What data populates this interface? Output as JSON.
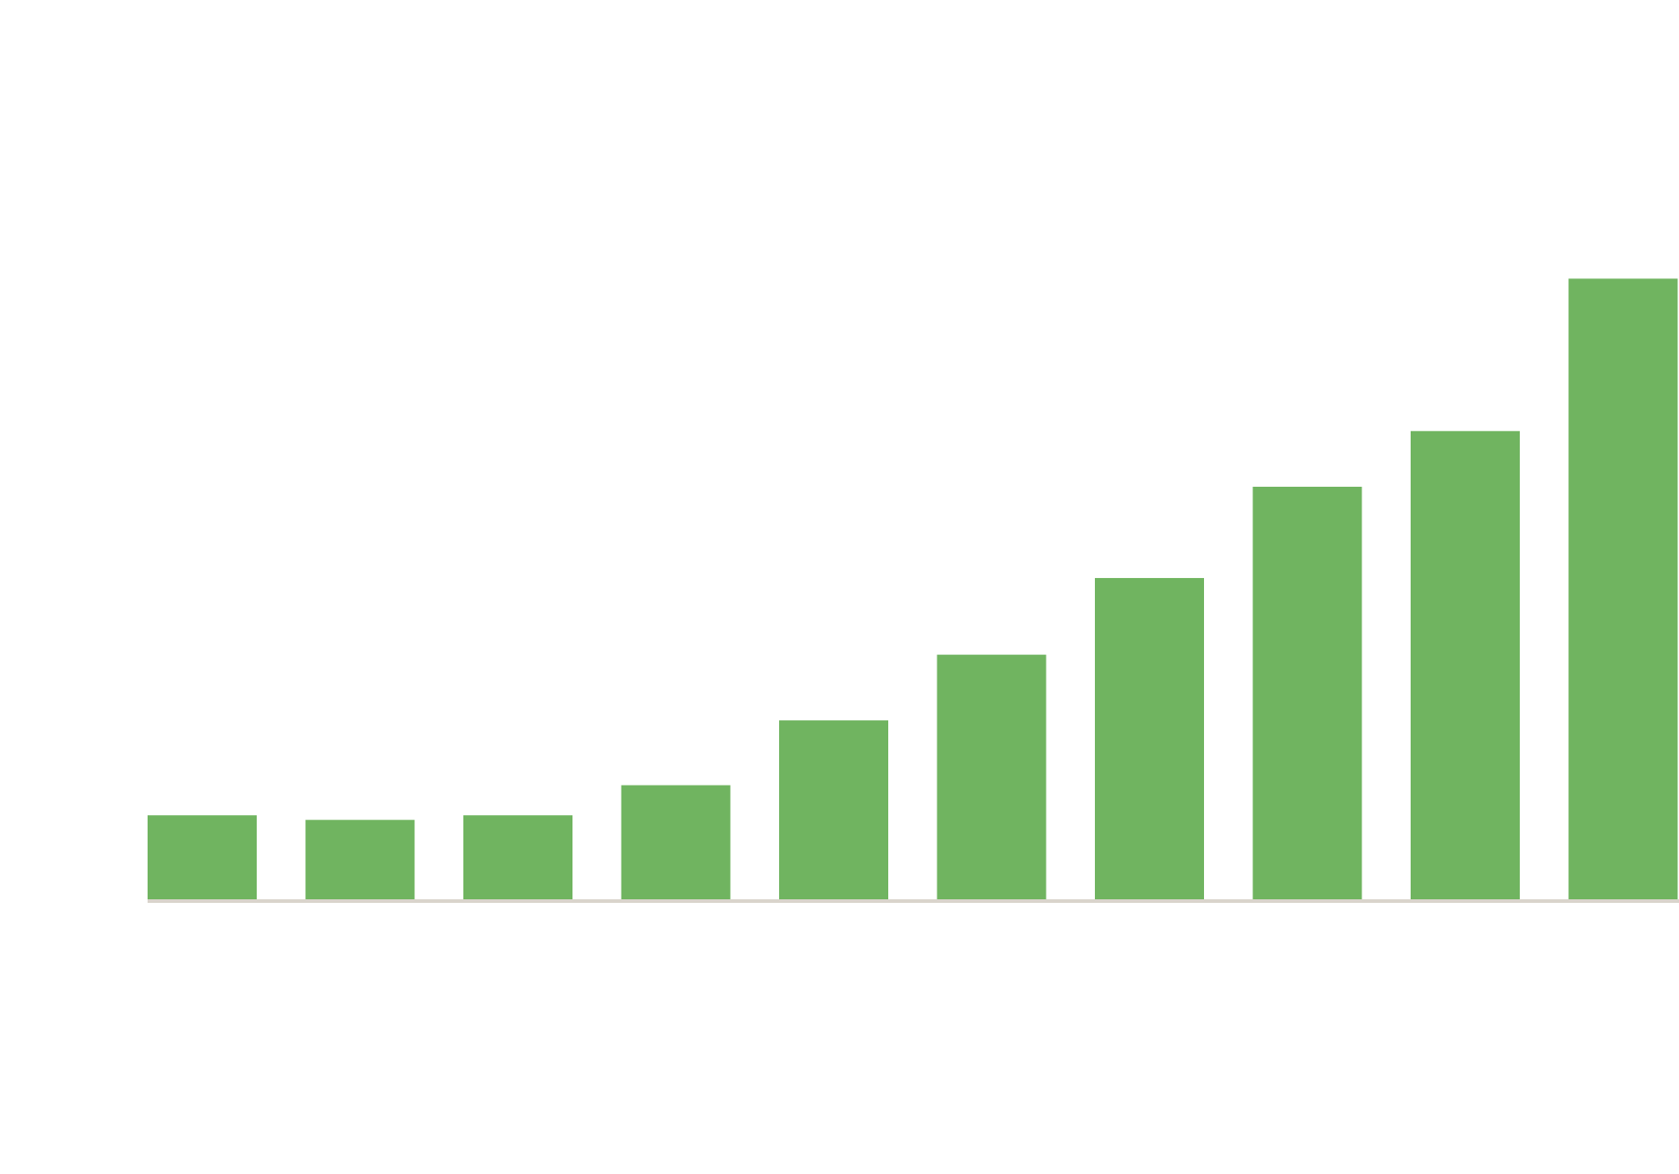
{
  "chart_data": {
    "type": "bar",
    "categories": [
      "",
      "",
      "",
      "",
      "",
      "",
      "",
      "",
      "",
      ""
    ],
    "values": [
      9.2,
      8.7,
      9.2,
      12.5,
      19.6,
      26.8,
      35.2,
      45.2,
      51.3,
      68.0
    ],
    "title": "",
    "xlabel": "",
    "ylabel": "",
    "ylim": [
      0,
      100
    ],
    "grid": false,
    "legend": "none",
    "colors": {
      "bar": "#70b460",
      "axis": "#d9d4cc",
      "background": "#ffffff"
    }
  }
}
